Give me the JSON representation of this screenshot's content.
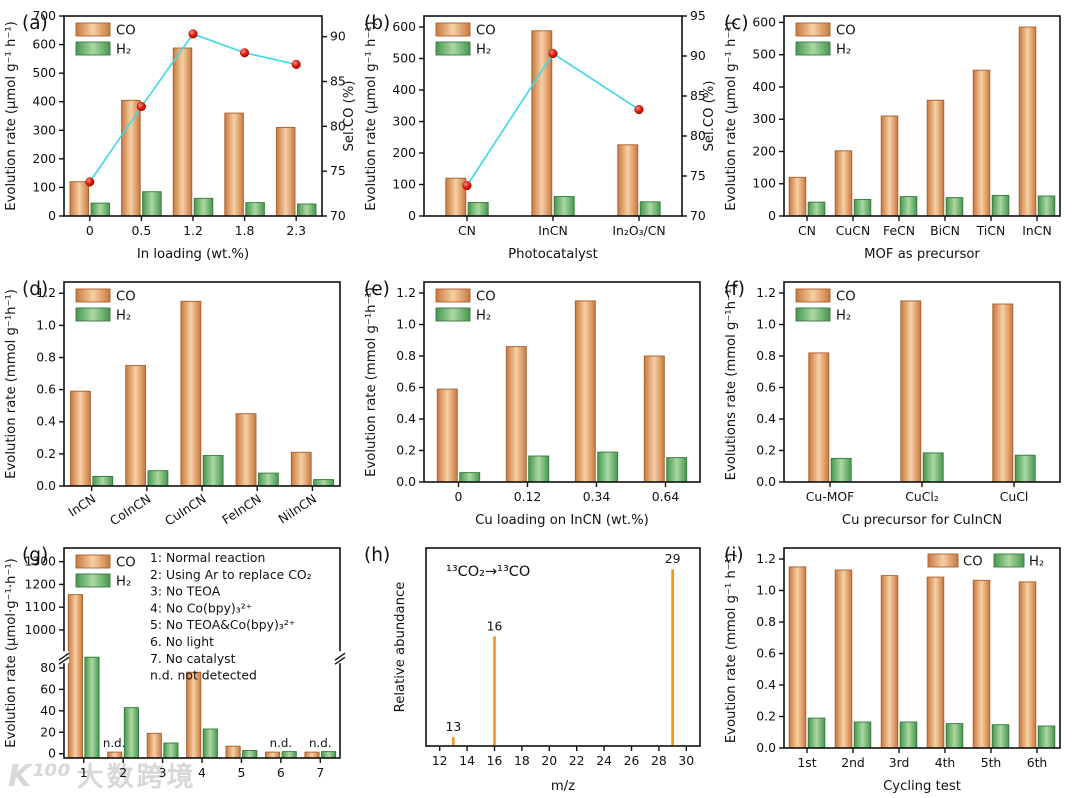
{
  "watermark": {
    "logo": "K¹⁰⁰",
    "text": "大数跨境"
  },
  "colors": {
    "co_edge": "#c8793f",
    "co_mid": "#f7d0a4",
    "co_stroke": "#a95f2c",
    "h2_edge": "#46984f",
    "h2_mid": "#abd8a2",
    "h2_stroke": "#35793f",
    "line": "#45d9e6",
    "dot": "#e41a0c",
    "dot_dark": "#9c0b00",
    "stem": "#f59122",
    "axis": "#111111"
  },
  "chart_data": [
    {
      "id": "a",
      "label": "(a)",
      "type": "bar",
      "categories": [
        "0",
        "0.5",
        "1.2",
        "1.8",
        "2.3"
      ],
      "series": [
        {
          "name": "CO",
          "values": [
            120,
            405,
            588,
            360,
            310
          ]
        },
        {
          "name": "H₂",
          "values": [
            45,
            85,
            62,
            47,
            42
          ]
        }
      ],
      "overlay_line": {
        "name": "Sel.CO",
        "values": [
          73.8,
          82.2,
          90.3,
          88.2,
          86.9
        ]
      },
      "xlabel": "In loading (wt.%)",
      "ylabel": "Evolution rate (μmol g⁻¹ h⁻¹)",
      "ylim": [
        0,
        700
      ],
      "ytick_values": [
        0,
        100,
        200,
        300,
        400,
        500,
        600,
        700
      ],
      "ytick_labels": [
        "0",
        "100",
        "200",
        "300",
        "400",
        "500",
        "600",
        "700"
      ],
      "y2label": "Sel.CO (%)",
      "y2lim": [
        70,
        92.3
      ],
      "y2tick_values": [
        70,
        75,
        80,
        85,
        90
      ],
      "y2tick_labels": [
        "70",
        "75",
        "80",
        "85",
        "90"
      ],
      "legend": "vertical"
    },
    {
      "id": "b",
      "label": "(b)",
      "type": "bar",
      "categories": [
        "CN",
        "InCN",
        "In₂O₃/CN"
      ],
      "series": [
        {
          "name": "CO",
          "values": [
            120,
            588,
            226
          ]
        },
        {
          "name": "H₂",
          "values": [
            43,
            62,
            45
          ]
        }
      ],
      "overlay_line": {
        "name": "Sel.CO",
        "values": [
          73.8,
          90.3,
          83.3
        ]
      },
      "xlabel": "Photocatalyst",
      "ylabel": "Evolution rate (μmol g⁻¹ h⁻¹)",
      "ylim": [
        0,
        635
      ],
      "ytick_values": [
        0,
        100,
        200,
        300,
        400,
        500,
        600
      ],
      "ytick_labels": [
        "0",
        "100",
        "200",
        "300",
        "400",
        "500",
        "600"
      ],
      "y2label": "Sel.CO (%)",
      "y2lim": [
        70,
        95
      ],
      "y2tick_values": [
        70,
        75,
        80,
        85,
        90,
        95
      ],
      "y2tick_labels": [
        "70",
        "75",
        "80",
        "85",
        "90",
        "95"
      ],
      "legend": "vertical"
    },
    {
      "id": "c",
      "label": "(c)",
      "type": "bar",
      "categories": [
        "CN",
        "CuCN",
        "FeCN",
        "BiCN",
        "TiCN",
        "InCN"
      ],
      "series": [
        {
          "name": "CO",
          "values": [
            120,
            202,
            310,
            359,
            452,
            586
          ]
        },
        {
          "name": "H₂",
          "values": [
            43,
            51,
            60,
            57,
            64,
            62
          ]
        }
      ],
      "xlabel": "MOF as precursor",
      "ylabel": "Evolution rate (μmol g⁻¹ h⁻¹)",
      "ylim": [
        0,
        620
      ],
      "ytick_values": [
        0,
        100,
        200,
        300,
        400,
        500,
        600
      ],
      "ytick_labels": [
        "0",
        "100",
        "200",
        "300",
        "400",
        "500",
        "600"
      ],
      "legend": "vertical"
    },
    {
      "id": "d",
      "label": "(d)",
      "type": "bar",
      "categories": [
        "InCN",
        "CoInCN",
        "CuInCN",
        "FeInCN",
        "NiInCN"
      ],
      "rotate_xticks": true,
      "series": [
        {
          "name": "CO",
          "values": [
            0.59,
            0.75,
            1.15,
            0.45,
            0.21
          ]
        },
        {
          "name": "H₂",
          "values": [
            0.06,
            0.095,
            0.19,
            0.08,
            0.04
          ]
        }
      ],
      "ylabel": "Evolution rate (mmol g⁻¹h⁻¹)",
      "ylim": [
        0,
        1.27
      ],
      "ytick_values": [
        0,
        0.2,
        0.4,
        0.6,
        0.8,
        1.0,
        1.2
      ],
      "ytick_labels": [
        "0.0",
        "0.2",
        "0.4",
        "0.6",
        "0.8",
        "1.0",
        "1.2"
      ],
      "legend": "vertical"
    },
    {
      "id": "e",
      "label": "(e)",
      "type": "bar",
      "categories": [
        "0",
        "0.12",
        "0.34",
        "0.64"
      ],
      "series": [
        {
          "name": "CO",
          "values": [
            0.59,
            0.86,
            1.15,
            0.8
          ]
        },
        {
          "name": "H₂",
          "values": [
            0.06,
            0.165,
            0.19,
            0.155
          ]
        }
      ],
      "xlabel": "Cu loading on InCN (wt.%)",
      "ylabel": "Evolution rate (mmol g⁻¹h⁻¹)",
      "ylim": [
        0,
        1.27
      ],
      "ytick_values": [
        0,
        0.2,
        0.4,
        0.6,
        0.8,
        1.0,
        1.2
      ],
      "ytick_labels": [
        "0.0",
        "0.2",
        "0.4",
        "0.6",
        "0.8",
        "1.0",
        "1.2"
      ],
      "legend": "vertical"
    },
    {
      "id": "f",
      "label": "(f)",
      "type": "bar",
      "categories": [
        "Cu-MOF",
        "CuCl₂",
        "CuCl"
      ],
      "series": [
        {
          "name": "CO",
          "values": [
            0.82,
            1.15,
            1.13
          ]
        },
        {
          "name": "H₂",
          "values": [
            0.15,
            0.185,
            0.17
          ]
        }
      ],
      "xlabel": "Cu precursor for CuInCN",
      "ylabel": "Evolutions rate (mmol g⁻¹h⁻¹)",
      "ylim": [
        0,
        1.27
      ],
      "ytick_values": [
        0,
        0.2,
        0.4,
        0.6,
        0.8,
        1.0,
        1.2
      ],
      "ytick_labels": [
        "0.0",
        "0.2",
        "0.4",
        "0.6",
        "0.8",
        "1.0",
        "1.2"
      ],
      "legend": "vertical"
    },
    {
      "id": "g",
      "label": "(g)",
      "type": "bar",
      "categories": [
        "1",
        "2",
        "3",
        "4",
        "5",
        "6",
        "7"
      ],
      "series": [
        {
          "name": "CO",
          "values": [
            1155,
            1.5,
            19,
            76,
            7,
            1.5,
            1.5
          ]
        },
        {
          "name": "H₂",
          "values": [
            190,
            43,
            10,
            23,
            3,
            2,
            2
          ]
        }
      ],
      "ylabel": "Evolution rate (μmol·g⁻¹·h⁻¹)",
      "break": {
        "lower_lim": [
          -4,
          90
        ],
        "lower_tick_values": [
          0,
          20,
          40,
          60,
          80
        ],
        "lower_tick_labels": [
          "0",
          "20",
          "40",
          "60",
          "80"
        ],
        "upper_lim": [
          880,
          1360
        ],
        "upper_tick_values": [
          1000,
          1100,
          1200,
          1300
        ],
        "upper_tick_labels": [
          "1000",
          "1100",
          "1200",
          "1300"
        ],
        "break_frac": 0.52
      },
      "annotations_nd": [
        {
          "ci": 1,
          "text": "n.d.",
          "dx": -9
        },
        {
          "ci": 5,
          "text": "n.d.",
          "dx": 0
        },
        {
          "ci": 6,
          "text": "n.d.",
          "dx": 0
        }
      ],
      "note_lines": [
        "1: Normal reaction",
        "2: Using Ar to replace CO₂",
        "3: No TEOA",
        "4: No Co(bpy)₃²⁺",
        "5: No TEOA&Co(bpy)₃²⁺",
        "6. No light",
        "7. No catalyst",
        "n.d. not detected"
      ],
      "legend": "vertical"
    },
    {
      "id": "h",
      "label": "(h)",
      "type": "stem",
      "xlim": [
        11,
        31
      ],
      "xtick_values": [
        12,
        14,
        16,
        18,
        20,
        22,
        24,
        26,
        28,
        30
      ],
      "xtick_labels": [
        "12",
        "14",
        "16",
        "18",
        "20",
        "22",
        "24",
        "26",
        "28",
        "30"
      ],
      "peaks": [
        {
          "mz": 13,
          "rel": 5,
          "label": "13"
        },
        {
          "mz": 16,
          "rel": 62,
          "label": "16"
        },
        {
          "mz": 29,
          "rel": 100,
          "label": "29"
        }
      ],
      "ylim": [
        0,
        112
      ],
      "xlabel": "m/z",
      "ylabel": "Relative abundance",
      "annotation": "¹³CO₂→¹³CO"
    },
    {
      "id": "i",
      "label": "(i)",
      "type": "bar",
      "categories": [
        "1st",
        "2nd",
        "3rd",
        "4th",
        "5th",
        "6th"
      ],
      "series": [
        {
          "name": "CO",
          "values": [
            1.15,
            1.13,
            1.095,
            1.085,
            1.065,
            1.055
          ]
        },
        {
          "name": "H₂",
          "values": [
            0.19,
            0.165,
            0.165,
            0.155,
            0.148,
            0.14
          ]
        }
      ],
      "xlabel": "Cycling test",
      "ylabel": "Evoution rate (mmol g⁻¹ h⁻¹)",
      "ylim": [
        0,
        1.27
      ],
      "ytick_values": [
        0,
        0.2,
        0.4,
        0.6,
        0.8,
        1.0,
        1.2
      ],
      "ytick_labels": [
        "0.0",
        "0.2",
        "0.4",
        "0.6",
        "0.8",
        "1.0",
        "1.2"
      ],
      "legend": "horizontal"
    }
  ]
}
